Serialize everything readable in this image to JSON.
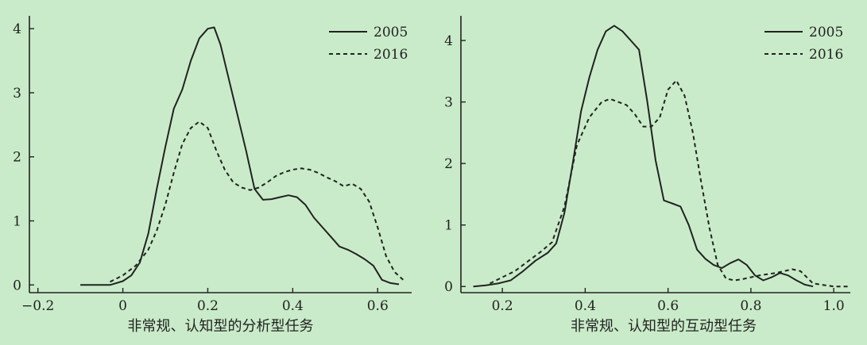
{
  "colors": {
    "background": "#c9ebc9",
    "ink": "#222222"
  },
  "chart_data": [
    {
      "type": "line",
      "title": "",
      "xlabel": "非常规、认知型的分析型任务",
      "ylabel": "",
      "xlim": [
        -0.22,
        0.68
      ],
      "ylim": [
        -0.12,
        4.2
      ],
      "xticks": [
        -0.2,
        0,
        0.2,
        0.4,
        0.6
      ],
      "xtick_labels": [
        "−0.2",
        "0",
        "0.2",
        "0.4",
        "0.6"
      ],
      "yticks": [
        0,
        1,
        2,
        3,
        4
      ],
      "ytick_labels": [
        "0",
        "1",
        "2",
        "3",
        "4"
      ],
      "grid": false,
      "legend": "top-right",
      "series": [
        {
          "name": "2005",
          "style": "solid",
          "x": [
            -0.1,
            -0.06,
            -0.03,
            0.0,
            0.02,
            0.04,
            0.06,
            0.08,
            0.1,
            0.12,
            0.14,
            0.16,
            0.18,
            0.2,
            0.215,
            0.23,
            0.25,
            0.27,
            0.29,
            0.31,
            0.33,
            0.35,
            0.37,
            0.39,
            0.41,
            0.43,
            0.45,
            0.47,
            0.49,
            0.51,
            0.53,
            0.55,
            0.57,
            0.59,
            0.61,
            0.63,
            0.65
          ],
          "y": [
            0.0,
            0.0,
            0.0,
            0.06,
            0.15,
            0.35,
            0.8,
            1.5,
            2.15,
            2.75,
            3.05,
            3.5,
            3.85,
            4.0,
            4.02,
            3.75,
            3.2,
            2.65,
            2.1,
            1.5,
            1.33,
            1.34,
            1.37,
            1.4,
            1.37,
            1.25,
            1.05,
            0.9,
            0.75,
            0.6,
            0.55,
            0.48,
            0.4,
            0.3,
            0.08,
            0.03,
            0.01
          ]
        },
        {
          "name": "2016",
          "style": "dashed",
          "x": [
            -0.03,
            0.0,
            0.03,
            0.06,
            0.08,
            0.1,
            0.12,
            0.14,
            0.16,
            0.18,
            0.2,
            0.22,
            0.24,
            0.26,
            0.28,
            0.3,
            0.32,
            0.34,
            0.36,
            0.38,
            0.4,
            0.42,
            0.44,
            0.46,
            0.48,
            0.5,
            0.52,
            0.54,
            0.56,
            0.58,
            0.6,
            0.62,
            0.64,
            0.66
          ],
          "y": [
            0.05,
            0.15,
            0.3,
            0.55,
            0.85,
            1.25,
            1.75,
            2.2,
            2.45,
            2.55,
            2.45,
            2.1,
            1.8,
            1.6,
            1.52,
            1.48,
            1.52,
            1.6,
            1.7,
            1.76,
            1.8,
            1.82,
            1.8,
            1.75,
            1.68,
            1.62,
            1.54,
            1.58,
            1.5,
            1.3,
            0.9,
            0.45,
            0.2,
            0.08
          ]
        }
      ]
    },
    {
      "type": "line",
      "title": "",
      "xlabel": "非常规、认知型的互动型任务",
      "ylabel": "",
      "xlim": [
        0.1,
        1.04
      ],
      "ylim": [
        -0.1,
        4.4
      ],
      "xticks": [
        0.2,
        0.4,
        0.6,
        0.8,
        1.0
      ],
      "xtick_labels": [
        "0.2",
        "0.4",
        "0.6",
        "0.8",
        "1.0"
      ],
      "yticks": [
        0,
        1,
        2,
        3,
        4
      ],
      "ytick_labels": [
        "0",
        "1",
        "2",
        "3",
        "4"
      ],
      "grid": false,
      "legend": "top-right",
      "series": [
        {
          "name": "2005",
          "style": "solid",
          "x": [
            0.13,
            0.16,
            0.19,
            0.22,
            0.25,
            0.28,
            0.31,
            0.33,
            0.35,
            0.37,
            0.39,
            0.41,
            0.43,
            0.45,
            0.47,
            0.49,
            0.51,
            0.53,
            0.55,
            0.57,
            0.59,
            0.61,
            0.63,
            0.65,
            0.67,
            0.69,
            0.71,
            0.73,
            0.75,
            0.77,
            0.79,
            0.81,
            0.83,
            0.85,
            0.87,
            0.89,
            0.91,
            0.93,
            0.95
          ],
          "y": [
            0.0,
            0.02,
            0.05,
            0.1,
            0.25,
            0.42,
            0.55,
            0.7,
            1.2,
            2.0,
            2.85,
            3.4,
            3.85,
            4.15,
            4.24,
            4.15,
            4.0,
            3.85,
            3.0,
            2.05,
            1.4,
            1.35,
            1.3,
            1.0,
            0.6,
            0.45,
            0.35,
            0.3,
            0.38,
            0.44,
            0.35,
            0.18,
            0.1,
            0.15,
            0.22,
            0.18,
            0.1,
            0.03,
            0.0
          ]
        },
        {
          "name": "2016",
          "style": "dashed",
          "x": [
            0.17,
            0.2,
            0.23,
            0.26,
            0.29,
            0.32,
            0.35,
            0.38,
            0.41,
            0.44,
            0.46,
            0.48,
            0.5,
            0.52,
            0.54,
            0.56,
            0.58,
            0.6,
            0.62,
            0.64,
            0.66,
            0.68,
            0.7,
            0.72,
            0.74,
            0.76,
            0.78,
            0.8,
            0.82,
            0.84,
            0.86,
            0.88,
            0.9,
            0.92,
            0.95,
            1.0,
            1.04
          ],
          "y": [
            0.05,
            0.15,
            0.25,
            0.4,
            0.55,
            0.72,
            1.3,
            2.3,
            2.75,
            3.0,
            3.05,
            3.0,
            2.95,
            2.8,
            2.6,
            2.6,
            2.75,
            3.2,
            3.35,
            3.1,
            2.5,
            1.7,
            0.95,
            0.35,
            0.13,
            0.1,
            0.12,
            0.15,
            0.18,
            0.2,
            0.22,
            0.25,
            0.28,
            0.25,
            0.05,
            0.0,
            0.0
          ]
        }
      ]
    }
  ]
}
